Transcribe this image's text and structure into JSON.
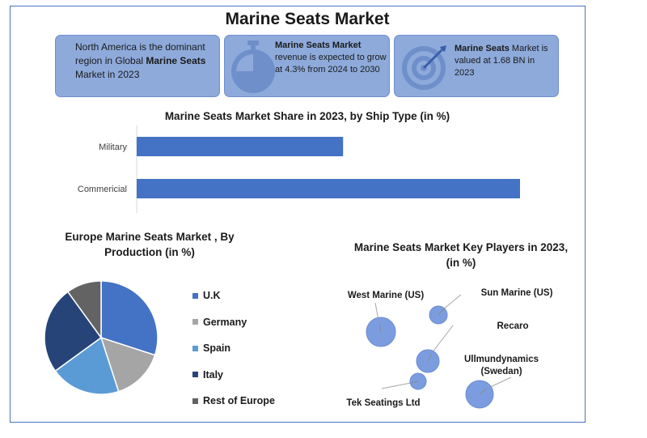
{
  "header": {
    "title": "Marine Seats Market"
  },
  "cards": [
    {
      "pre": "North America is the dominant region in Global ",
      "bold": "Marine Seats",
      "post": " Market in 2023",
      "icon": "none"
    },
    {
      "bold": "Marine Seats Market",
      "post": " revenue is expected to grow at 4.3% from 2024 to 2030",
      "icon": "stopwatch-icon"
    },
    {
      "bold": "Marine Seats",
      "post": " Market is valued at 1.68 BN in 2023",
      "icon": "target-icon"
    }
  ],
  "colors": {
    "accent": "#4472c4",
    "card": "#8eaadb",
    "bubble": "#7b9de0"
  },
  "chart_data": [
    {
      "type": "bar",
      "orientation": "horizontal",
      "title": "Marine Seats  Market Share in 2023, by Ship Type  (in %)",
      "categories": [
        "Military",
        "Commericial"
      ],
      "values": [
        35,
        65
      ],
      "xlim": [
        0,
        70
      ],
      "grid": false
    },
    {
      "type": "pie",
      "title": "Europe  Marine Seats  Market , By Production  (in %)",
      "labels": [
        "U.K",
        "Germany",
        "Spain",
        "Italy",
        "Rest of Europe"
      ],
      "values": [
        30,
        15,
        20,
        25,
        10
      ],
      "colors": [
        "#4472c4",
        "#a5a5a5",
        "#5b9bd5",
        "#264478",
        "#636363"
      ],
      "legend": "right"
    },
    {
      "type": "scatter",
      "title": "Marine Seats  Market Key Players in 2023, (in %)",
      "points": [
        {
          "name": "West Marine (US)",
          "size": 18
        },
        {
          "name": "Sun Marine (US)",
          "size": 11
        },
        {
          "name": "Recaro",
          "size": 14
        },
        {
          "name": "Tek Seatings Ltd",
          "size": 10
        },
        {
          "name": "Ullmundynamics (Swedan)",
          "size": 17
        }
      ]
    }
  ]
}
